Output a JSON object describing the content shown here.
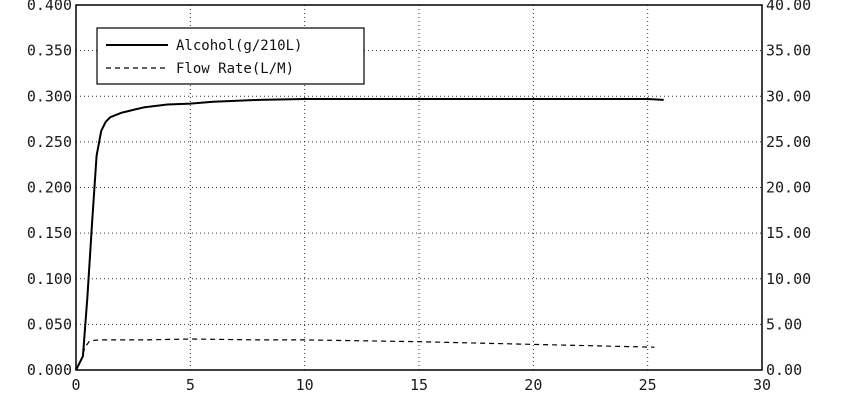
{
  "chart_data": {
    "type": "line",
    "title": "",
    "xlabel": "",
    "ylabel": "",
    "xlim": [
      0,
      30
    ],
    "ylim": [
      0.0,
      0.4
    ],
    "y2lim": [
      0.0,
      40.0
    ],
    "grid": true,
    "legend_position": "top-left",
    "x_ticks": [
      "0",
      "5",
      "10",
      "15",
      "20",
      "25",
      "30"
    ],
    "y_ticks": [
      "0.000",
      "0.050",
      "0.100",
      "0.150",
      "0.200",
      "0.250",
      "0.300",
      "0.350",
      "0.400"
    ],
    "y2_ticks": [
      "0.00",
      "5.00",
      "10.00",
      "15.00",
      "20.00",
      "25.00",
      "30.00",
      "35.00",
      "40.00"
    ],
    "series": [
      {
        "name": "Alcohol(g/210L)",
        "axis": "left",
        "style": "solid",
        "x": [
          0,
          0.3,
          0.5,
          0.7,
          0.9,
          1.1,
          1.3,
          1.5,
          2,
          2.5,
          3,
          4,
          5,
          6,
          8,
          10,
          12,
          15,
          18,
          20,
          22,
          24,
          25,
          25.7
        ],
        "y": [
          0.0,
          0.015,
          0.08,
          0.16,
          0.235,
          0.262,
          0.272,
          0.277,
          0.282,
          0.285,
          0.288,
          0.291,
          0.292,
          0.294,
          0.296,
          0.297,
          0.297,
          0.297,
          0.297,
          0.297,
          0.297,
          0.297,
          0.297,
          0.296
        ]
      },
      {
        "name": "Flow Rate(L/M)",
        "axis": "right",
        "style": "dashed",
        "x": [
          0,
          0.2,
          0.4,
          0.6,
          1,
          3,
          5,
          8,
          10,
          15,
          20,
          25.3
        ],
        "y": [
          0.0,
          1.0,
          2.5,
          3.2,
          3.3,
          3.3,
          3.4,
          3.3,
          3.3,
          3.1,
          2.8,
          2.5
        ]
      }
    ]
  }
}
